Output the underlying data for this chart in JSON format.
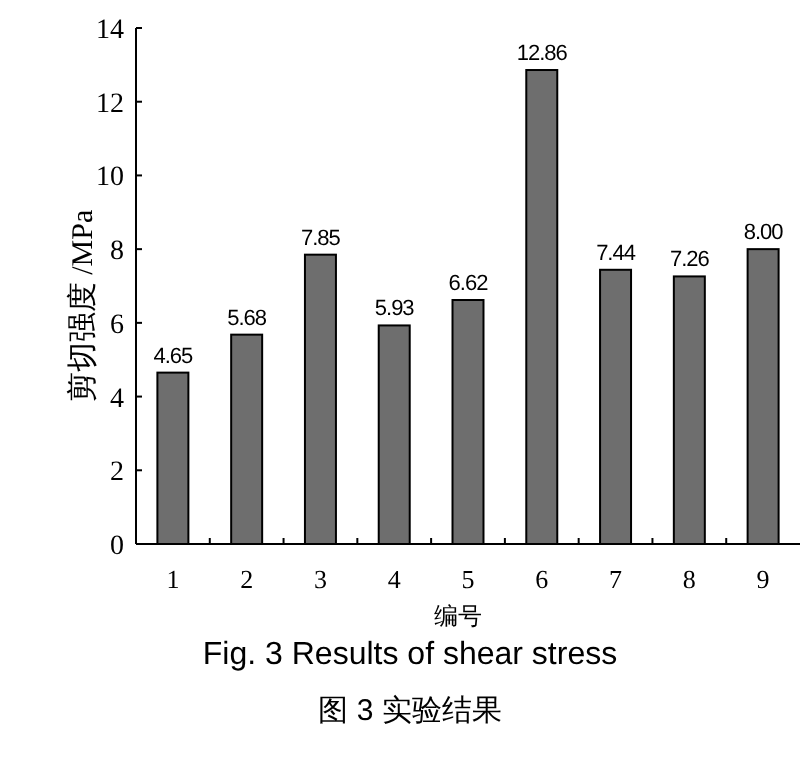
{
  "chart_data": {
    "type": "bar",
    "xlabel": "编号",
    "ylabel": "剪切强度 /MPa",
    "categories": [
      "1",
      "2",
      "3",
      "4",
      "5",
      "6",
      "7",
      "8",
      "9"
    ],
    "values": [
      4.65,
      5.68,
      7.85,
      5.93,
      6.62,
      12.86,
      7.44,
      7.26,
      8.0
    ],
    "value_labels": [
      "4.65",
      "5.68",
      "7.85",
      "5.93",
      "6.62",
      "12.86",
      "7.44",
      "7.26",
      "8.00"
    ],
    "color": "#6e6e6e",
    "ylim": [
      0,
      14
    ],
    "yticks": [
      0,
      2,
      4,
      6,
      8,
      10,
      12,
      14
    ],
    "grid": false,
    "annotations": [
      "Fig. 3    Results of shear stress",
      "图 3   实验结果"
    ]
  }
}
